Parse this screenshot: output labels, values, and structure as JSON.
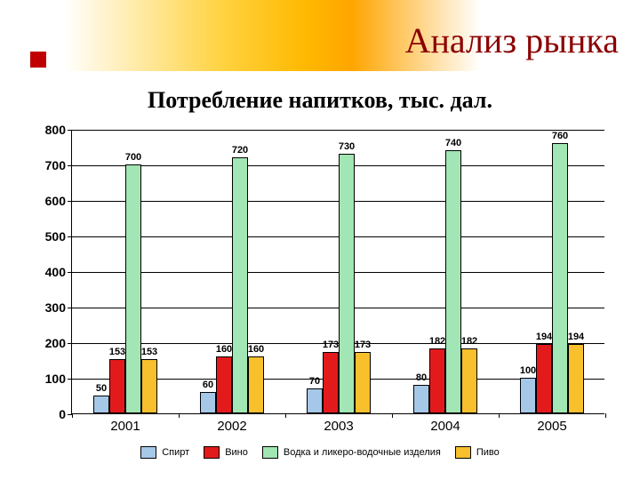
{
  "title": "Анализ рынка",
  "subtitle": "Потребление напитков, тыс. дал.",
  "chart": {
    "type": "bar",
    "categories": [
      "2001",
      "2002",
      "2003",
      "2004",
      "2005"
    ],
    "ylim": [
      0,
      800
    ],
    "ytick_step": 100,
    "series": [
      {
        "name": "Спирт",
        "color": "#a6c8e8",
        "values": [
          50,
          60,
          70,
          80,
          100
        ]
      },
      {
        "name": "Вино",
        "color": "#e31a1c",
        "values": [
          153,
          160,
          173,
          182,
          194
        ]
      },
      {
        "name": "Водка и ликеро-водочные изделия",
        "color": "#a1e6b4",
        "values": [
          700,
          720,
          730,
          740,
          760
        ]
      },
      {
        "name": "Пиво",
        "color": "#f7c02c",
        "values": [
          153,
          160,
          173,
          182,
          194
        ]
      }
    ],
    "grid_color": "#000000",
    "background_color": "#ffffff",
    "bar_border_color": "#000000",
    "title_color": "#8b0000",
    "accent_square_color": "#c00000"
  }
}
